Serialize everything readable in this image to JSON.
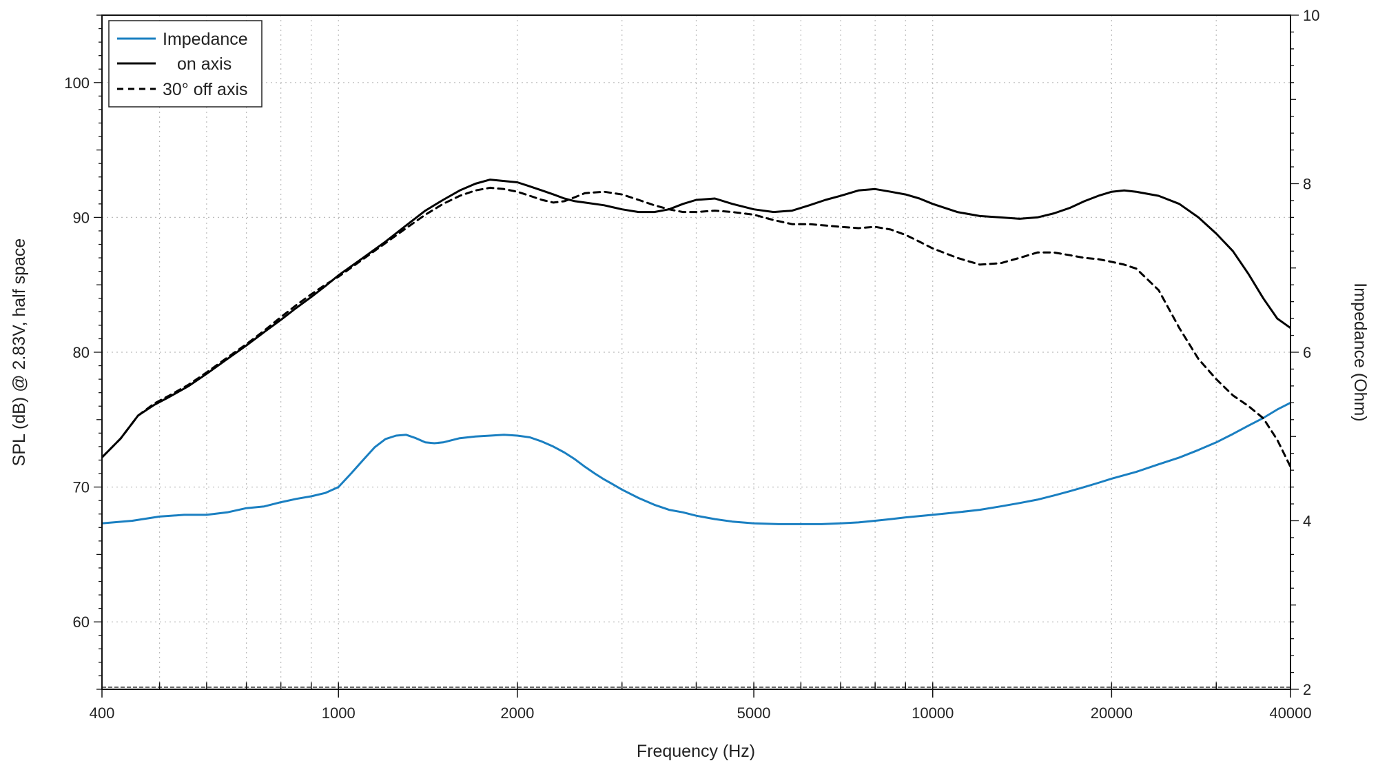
{
  "chart_data": {
    "type": "line",
    "xlabel": "Frequency (Hz)",
    "ylabel": "SPL (dB) @ 2.83V, half space",
    "y2label": "Impedance (Ohm)",
    "x_scale": "log",
    "xlim": [
      400,
      40000
    ],
    "ylim": [
      55,
      105
    ],
    "y2lim": [
      2,
      10
    ],
    "x_ticks": [
      400,
      1000,
      2000,
      5000,
      10000,
      20000,
      40000
    ],
    "x_tick_labels": [
      "400",
      "1000",
      "2000",
      "5000",
      "10000",
      "20000",
      "40000"
    ],
    "y_ticks": [
      60,
      70,
      80,
      90,
      100
    ],
    "y_tick_labels": [
      "60",
      "70",
      "80",
      "90",
      "100"
    ],
    "y2_ticks": [
      2,
      4,
      6,
      8,
      10
    ],
    "y2_tick_labels": [
      "2",
      "4",
      "6",
      "8",
      "10"
    ],
    "grid": true,
    "legend_position": "top-left",
    "series": [
      {
        "name": "Impedance",
        "axis": "right",
        "color": "#1a7fc1",
        "style": "solid",
        "x": [
          400,
          450,
          500,
          550,
          600,
          650,
          700,
          750,
          800,
          850,
          900,
          950,
          1000,
          1050,
          1100,
          1150,
          1200,
          1250,
          1300,
          1350,
          1400,
          1450,
          1500,
          1600,
          1700,
          1800,
          1900,
          2000,
          2100,
          2200,
          2300,
          2400,
          2500,
          2600,
          2700,
          2800,
          2900,
          3000,
          3200,
          3400,
          3600,
          3800,
          4000,
          4300,
          4600,
          5000,
          5500,
          6000,
          6500,
          7000,
          7500,
          8000,
          8500,
          9000,
          10000,
          11000,
          12000,
          13000,
          14000,
          15000,
          16000,
          17000,
          18000,
          19000,
          20000,
          22000,
          24000,
          26000,
          28000,
          30000,
          32000,
          34000,
          36000,
          38000,
          40000
        ],
        "values": [
          3.97,
          4.0,
          4.05,
          4.07,
          4.07,
          4.1,
          4.15,
          4.17,
          4.22,
          4.26,
          4.29,
          4.33,
          4.4,
          4.56,
          4.72,
          4.87,
          4.97,
          5.01,
          5.02,
          4.98,
          4.93,
          4.92,
          4.93,
          4.98,
          5.0,
          5.01,
          5.02,
          5.01,
          4.99,
          4.94,
          4.88,
          4.81,
          4.73,
          4.64,
          4.56,
          4.49,
          4.43,
          4.37,
          4.27,
          4.19,
          4.13,
          4.1,
          4.06,
          4.02,
          3.99,
          3.97,
          3.96,
          3.96,
          3.96,
          3.97,
          3.98,
          4.0,
          4.02,
          4.04,
          4.07,
          4.1,
          4.13,
          4.17,
          4.21,
          4.25,
          4.3,
          4.35,
          4.4,
          4.45,
          4.5,
          4.58,
          4.67,
          4.75,
          4.84,
          4.93,
          5.03,
          5.13,
          5.22,
          5.32,
          5.4
        ]
      },
      {
        "name": "on axis",
        "axis": "left",
        "color": "#000000",
        "style": "solid",
        "x": [
          400,
          430,
          460,
          490,
          520,
          560,
          600,
          650,
          700,
          750,
          800,
          850,
          900,
          950,
          1000,
          1100,
          1200,
          1300,
          1400,
          1500,
          1600,
          1700,
          1800,
          1900,
          2000,
          2100,
          2200,
          2300,
          2400,
          2500,
          2600,
          2800,
          3000,
          3200,
          3400,
          3600,
          3800,
          4000,
          4300,
          4600,
          5000,
          5400,
          5800,
          6200,
          6600,
          7000,
          7500,
          8000,
          8500,
          9000,
          9500,
          10000,
          11000,
          12000,
          13000,
          14000,
          15000,
          16000,
          17000,
          18000,
          19000,
          20000,
          21000,
          22000,
          24000,
          26000,
          28000,
          30000,
          32000,
          34000,
          36000,
          38000,
          40000
        ],
        "values": [
          72.2,
          73.6,
          75.3,
          76.1,
          76.7,
          77.5,
          78.4,
          79.5,
          80.5,
          81.5,
          82.4,
          83.3,
          84.1,
          84.9,
          85.7,
          87.0,
          88.2,
          89.4,
          90.5,
          91.3,
          92.0,
          92.5,
          92.8,
          92.7,
          92.6,
          92.3,
          92.0,
          91.7,
          91.4,
          91.2,
          91.1,
          90.9,
          90.6,
          90.4,
          90.4,
          90.6,
          91.0,
          91.3,
          91.4,
          91.0,
          90.6,
          90.4,
          90.5,
          90.9,
          91.3,
          91.6,
          92.0,
          92.1,
          91.9,
          91.7,
          91.4,
          91.0,
          90.4,
          90.1,
          90.0,
          89.9,
          90.0,
          90.3,
          90.7,
          91.2,
          91.6,
          91.9,
          92.0,
          91.9,
          91.6,
          91.0,
          90.0,
          88.8,
          87.5,
          85.8,
          84.0,
          82.5,
          81.8
        ]
      },
      {
        "name": "30° off axis",
        "axis": "left",
        "color": "#000000",
        "style": "dashed",
        "x": [
          400,
          430,
          460,
          490,
          520,
          560,
          600,
          650,
          700,
          750,
          800,
          850,
          900,
          950,
          1000,
          1100,
          1200,
          1300,
          1400,
          1500,
          1600,
          1700,
          1800,
          1900,
          2000,
          2100,
          2200,
          2300,
          2400,
          2500,
          2600,
          2800,
          3000,
          3200,
          3400,
          3600,
          3800,
          4000,
          4300,
          4600,
          5000,
          5400,
          5800,
          6200,
          6600,
          7000,
          7500,
          8000,
          8500,
          9000,
          9500,
          10000,
          11000,
          12000,
          13000,
          14000,
          15000,
          16000,
          17000,
          18000,
          19000,
          20000,
          21000,
          22000,
          24000,
          26000,
          28000,
          30000,
          32000,
          34000,
          36000,
          38000,
          40000
        ],
        "values": [
          72.2,
          73.6,
          75.3,
          76.2,
          76.8,
          77.6,
          78.5,
          79.6,
          80.6,
          81.6,
          82.6,
          83.5,
          84.3,
          85.0,
          85.6,
          86.9,
          88.1,
          89.2,
          90.2,
          91.0,
          91.6,
          92.0,
          92.2,
          92.1,
          91.9,
          91.6,
          91.3,
          91.1,
          91.2,
          91.5,
          91.8,
          91.9,
          91.7,
          91.3,
          90.9,
          90.6,
          90.4,
          90.4,
          90.5,
          90.4,
          90.2,
          89.8,
          89.5,
          89.5,
          89.4,
          89.3,
          89.2,
          89.3,
          89.1,
          88.7,
          88.2,
          87.7,
          87.0,
          86.5,
          86.6,
          87.0,
          87.4,
          87.4,
          87.2,
          87.0,
          86.9,
          86.7,
          86.5,
          86.2,
          84.6,
          81.8,
          79.5,
          78.0,
          76.8,
          76.0,
          75.1,
          73.5,
          71.5
        ]
      }
    ]
  }
}
